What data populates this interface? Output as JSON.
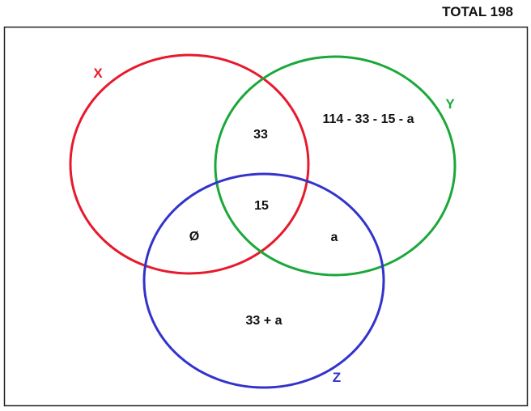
{
  "total_label": "TOTAL 198",
  "sets": [
    {
      "name": "X",
      "color": "#e8192c"
    },
    {
      "name": "Y",
      "color": "#1aa83a"
    },
    {
      "name": "Z",
      "color": "#3333cc"
    }
  ],
  "regions": {
    "x_and_y_only": "33",
    "x_y_z": "15",
    "x_and_z_only": "Ø",
    "y_and_z_only": "a",
    "y_only": "114 - 33 - 15 - a",
    "z_only": "33 + a"
  }
}
